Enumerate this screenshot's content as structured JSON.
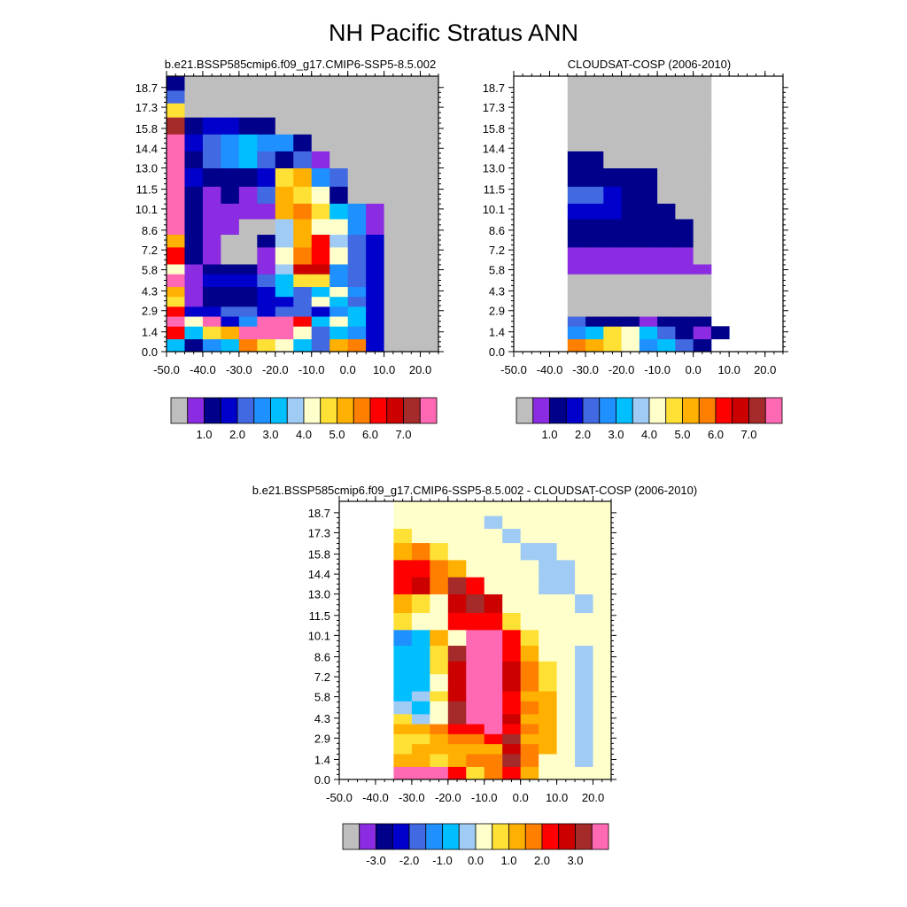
{
  "figure": {
    "title": "NH Pacific Stratus ANN"
  },
  "colors": {
    "missing": "#BEBEBE",
    "palette": [
      "#BEBEBE",
      "#8B2BE2",
      "#00008B",
      "#0000CD",
      "#4169E1",
      "#1E90FF",
      "#00BFFF",
      "#A0CBF5",
      "#FFFFCC",
      "#FFE135",
      "#FFB000",
      "#FF7F00",
      "#FF0000",
      "#CD0000",
      "#A52A2A",
      "#FF69B4"
    ]
  },
  "chart_data": [
    {
      "type": "heatmap",
      "title": "b.e21.BSSP585cmip6.f09_g17.CMIP6-SSP5-8.5.002",
      "x_ticks": [
        "-50.0",
        "-40.0",
        "-30.0",
        "-20.0",
        "-10.0",
        "0.0",
        "10.0",
        "20.0"
      ],
      "y_ticks": [
        "0.0",
        "1.4",
        "2.9",
        "4.3",
        "5.8",
        "7.2",
        "8.6",
        "10.1",
        "11.5",
        "13.0",
        "14.4",
        "15.8",
        "17.3",
        "18.7"
      ],
      "xlim": [
        -50,
        25
      ],
      "ylim": [
        0,
        19.5
      ],
      "colorbar_labels": [
        "1.0",
        "2.0",
        "3.0",
        "4.0",
        "5.0",
        "6.0",
        "7.0"
      ],
      "tau_edges": [
        -50,
        -45,
        -40,
        -35,
        -30,
        -25,
        -20,
        -15,
        -10,
        -5,
        0,
        5,
        10,
        15,
        20,
        25
      ],
      "height_edges": [
        0,
        0.9,
        1.8,
        2.5,
        3.2,
        3.9,
        4.6,
        5.5,
        6.2,
        7.4,
        8.3,
        9.4,
        10.5,
        11.7,
        13.0,
        14.2,
        15.4,
        16.6,
        17.6,
        18.5,
        19.5
      ],
      "values": [
        [
          6,
          2,
          5,
          6,
          11,
          9,
          8,
          6,
          4,
          10,
          11,
          3,
          0,
          0,
          0
        ],
        [
          12,
          6,
          9,
          10,
          15,
          15,
          15,
          8,
          4,
          6,
          5,
          3,
          0,
          0,
          0
        ],
        [
          15,
          8,
          15,
          3,
          5,
          15,
          15,
          12,
          6,
          8,
          6,
          3,
          0,
          0,
          0
        ],
        [
          12,
          3,
          3,
          4,
          4,
          3,
          4,
          4,
          3,
          5,
          6,
          3,
          0,
          0,
          0
        ],
        [
          9,
          1,
          2,
          2,
          2,
          3,
          3,
          4,
          8,
          6,
          4,
          3,
          0,
          0,
          0
        ],
        [
          10,
          1,
          2,
          2,
          2,
          3,
          6,
          4,
          6,
          8,
          5,
          3,
          0,
          0,
          0
        ],
        [
          15,
          1,
          3,
          3,
          3,
          4,
          6,
          9,
          9,
          5,
          4,
          3,
          0,
          0,
          0
        ],
        [
          8,
          1,
          2,
          2,
          2,
          1,
          7,
          13,
          13,
          5,
          4,
          3,
          0,
          0,
          0
        ],
        [
          12,
          2,
          1,
          0,
          0,
          1,
          8,
          11,
          12,
          8,
          4,
          3,
          0,
          0,
          0
        ],
        [
          10,
          2,
          1,
          0,
          0,
          2,
          7,
          10,
          12,
          7,
          4,
          3,
          0,
          0,
          0
        ],
        [
          15,
          2,
          1,
          1,
          0,
          0,
          7,
          10,
          8,
          8,
          5,
          1,
          0,
          0,
          0
        ],
        [
          15,
          2,
          1,
          1,
          1,
          1,
          10,
          11,
          9,
          6,
          5,
          1,
          0,
          0,
          0
        ],
        [
          15,
          2,
          1,
          2,
          1,
          4,
          10,
          9,
          8,
          2,
          0,
          0,
          0,
          0,
          0
        ],
        [
          15,
          3,
          2,
          2,
          2,
          3,
          9,
          10,
          5,
          4,
          0,
          0,
          0,
          0,
          0
        ],
        [
          15,
          2,
          4,
          5,
          6,
          4,
          2,
          4,
          1,
          0,
          0,
          0,
          0,
          0,
          0
        ],
        [
          15,
          3,
          4,
          5,
          6,
          5,
          5,
          2,
          0,
          0,
          0,
          0,
          0,
          0,
          0
        ],
        [
          14,
          2,
          3,
          3,
          2,
          2,
          0,
          0,
          0,
          0,
          0,
          0,
          0,
          0,
          0
        ],
        [
          9,
          0,
          0,
          0,
          0,
          0,
          0,
          0,
          0,
          0,
          0,
          0,
          0,
          0,
          0
        ],
        [
          4,
          0,
          0,
          0,
          0,
          0,
          0,
          0,
          0,
          0,
          0,
          0,
          0,
          0,
          0
        ],
        [
          2,
          0,
          0,
          0,
          0,
          0,
          0,
          0,
          0,
          0,
          0,
          0,
          0,
          0,
          0
        ]
      ]
    },
    {
      "type": "heatmap",
      "title": "CLOUDSAT-COSP (2006-2010)",
      "x_ticks": [
        "-50.0",
        "-40.0",
        "-30.0",
        "-20.0",
        "-10.0",
        "0.0",
        "10.0",
        "20.0"
      ],
      "y_ticks": [
        "0.0",
        "1.4",
        "2.9",
        "4.3",
        "5.8",
        "7.2",
        "8.6",
        "10.1",
        "11.5",
        "13.0",
        "14.4",
        "15.8",
        "17.3",
        "18.7"
      ],
      "xlim": [
        -50,
        25
      ],
      "ylim": [
        0,
        19.5
      ],
      "colorbar_labels": [
        "1.0",
        "2.0",
        "3.0",
        "4.0",
        "5.0",
        "6.0",
        "7.0"
      ],
      "tau_edges": [
        -50,
        -45,
        -40,
        -35,
        -30,
        -25,
        -20,
        -15,
        -10,
        -5,
        0,
        5,
        10,
        15,
        20,
        25
      ],
      "height_edges": [
        0,
        0.9,
        1.8,
        2.5,
        3.2,
        3.9,
        4.6,
        5.5,
        6.2,
        7.4,
        8.3,
        9.4,
        10.5,
        11.7,
        13.0,
        14.2,
        15.4,
        16.6,
        17.6,
        18.5,
        19.5
      ],
      "values": [
        [
          null,
          null,
          null,
          11,
          10,
          9,
          8,
          5,
          6,
          4,
          2,
          null,
          null,
          null,
          null
        ],
        [
          null,
          null,
          null,
          5,
          6,
          9,
          8,
          6,
          4,
          2,
          1,
          2,
          null,
          null,
          null
        ],
        [
          null,
          null,
          null,
          4,
          2,
          2,
          2,
          1,
          2,
          2,
          2,
          null,
          null,
          null,
          null
        ],
        [
          null,
          null,
          null,
          0,
          0,
          0,
          0,
          0,
          0,
          0,
          0,
          null,
          null,
          null,
          null
        ],
        [
          null,
          null,
          null,
          0,
          0,
          0,
          0,
          0,
          0,
          0,
          0,
          null,
          null,
          null,
          null
        ],
        [
          null,
          null,
          null,
          0,
          0,
          0,
          0,
          0,
          0,
          0,
          0,
          null,
          null,
          null,
          null
        ],
        [
          null,
          null,
          null,
          0,
          0,
          0,
          0,
          0,
          0,
          0,
          0,
          null,
          null,
          null,
          null
        ],
        [
          null,
          null,
          null,
          1,
          1,
          1,
          1,
          1,
          1,
          1,
          1,
          null,
          null,
          null,
          null
        ],
        [
          null,
          null,
          null,
          1,
          1,
          1,
          1,
          1,
          1,
          1,
          0,
          null,
          null,
          null,
          null
        ],
        [
          null,
          null,
          null,
          2,
          2,
          2,
          2,
          2,
          2,
          2,
          0,
          null,
          null,
          null,
          null
        ],
        [
          null,
          null,
          null,
          2,
          2,
          2,
          2,
          2,
          2,
          2,
          0,
          null,
          null,
          null,
          null
        ],
        [
          null,
          null,
          null,
          3,
          3,
          3,
          2,
          2,
          2,
          0,
          0,
          null,
          null,
          null,
          null
        ],
        [
          null,
          null,
          null,
          4,
          4,
          3,
          2,
          2,
          0,
          0,
          0,
          null,
          null,
          null,
          null
        ],
        [
          null,
          null,
          null,
          2,
          2,
          2,
          2,
          2,
          0,
          0,
          0,
          null,
          null,
          null,
          null
        ],
        [
          null,
          null,
          null,
          2,
          2,
          0,
          0,
          0,
          0,
          0,
          0,
          null,
          null,
          null,
          null
        ],
        [
          null,
          null,
          null,
          0,
          0,
          0,
          0,
          0,
          0,
          0,
          0,
          null,
          null,
          null,
          null
        ],
        [
          null,
          null,
          null,
          0,
          0,
          0,
          0,
          0,
          0,
          0,
          0,
          null,
          null,
          null,
          null
        ],
        [
          null,
          null,
          null,
          0,
          0,
          0,
          0,
          0,
          0,
          0,
          0,
          null,
          null,
          null,
          null
        ],
        [
          null,
          null,
          null,
          0,
          0,
          0,
          0,
          0,
          0,
          0,
          0,
          null,
          null,
          null,
          null
        ],
        [
          null,
          null,
          null,
          0,
          0,
          0,
          0,
          0,
          0,
          0,
          0,
          null,
          null,
          null,
          null
        ]
      ]
    },
    {
      "type": "heatmap",
      "title": "b.e21.BSSP585cmip6.f09_g17.CMIP6-SSP5-8.5.002 - CLOUDSAT-COSP (2006-2010)",
      "x_ticks": [
        "-50.0",
        "-40.0",
        "-30.0",
        "-20.0",
        "-10.0",
        "0.0",
        "10.0",
        "20.0"
      ],
      "y_ticks": [
        "0.0",
        "1.4",
        "2.9",
        "4.3",
        "5.8",
        "7.2",
        "8.6",
        "10.1",
        "11.5",
        "13.0",
        "14.4",
        "15.8",
        "17.3",
        "18.7"
      ],
      "xlim": [
        -50,
        25
      ],
      "ylim": [
        0,
        19.5
      ],
      "colorbar_labels": [
        "-3.0",
        "-2.0",
        "-1.0",
        "0.0",
        "1.0",
        "2.0",
        "3.0"
      ],
      "tau_edges": [
        -50,
        -45,
        -40,
        -35,
        -30,
        -25,
        -20,
        -15,
        -10,
        -5,
        0,
        5,
        10,
        15,
        20,
        25
      ],
      "height_edges": [
        0,
        0.9,
        1.8,
        2.5,
        3.2,
        3.9,
        4.6,
        5.5,
        6.2,
        7.4,
        8.3,
        9.4,
        10.5,
        11.7,
        13.0,
        14.2,
        15.4,
        16.6,
        17.6,
        18.5,
        19.5
      ],
      "values": [
        [
          null,
          null,
          null,
          15,
          15,
          15,
          12,
          9,
          11,
          12,
          10,
          8,
          8,
          8,
          8
        ],
        [
          null,
          null,
          null,
          10,
          10,
          9,
          10,
          11,
          11,
          14,
          11,
          8,
          8,
          7,
          8
        ],
        [
          null,
          null,
          null,
          9,
          10,
          10,
          10,
          10,
          10,
          13,
          11,
          10,
          8,
          7,
          8
        ],
        [
          null,
          null,
          null,
          9,
          9,
          10,
          11,
          11,
          12,
          14,
          10,
          10,
          8,
          7,
          8
        ],
        [
          null,
          null,
          null,
          10,
          10,
          11,
          12,
          12,
          15,
          12,
          11,
          10,
          8,
          7,
          8
        ],
        [
          null,
          null,
          null,
          9,
          7,
          8,
          14,
          15,
          15,
          13,
          10,
          10,
          8,
          7,
          8
        ],
        [
          null,
          null,
          null,
          7,
          6,
          8,
          14,
          15,
          15,
          12,
          11,
          10,
          8,
          7,
          8
        ],
        [
          null,
          null,
          null,
          6,
          7,
          9,
          13,
          15,
          15,
          12,
          10,
          10,
          8,
          7,
          8
        ],
        [
          null,
          null,
          null,
          6,
          6,
          8,
          13,
          15,
          15,
          13,
          11,
          9,
          8,
          7,
          8
        ],
        [
          null,
          null,
          null,
          6,
          6,
          9,
          13,
          15,
          15,
          13,
          11,
          9,
          8,
          7,
          8
        ],
        [
          null,
          null,
          null,
          6,
          6,
          9,
          14,
          15,
          15,
          12,
          10,
          8,
          8,
          7,
          8
        ],
        [
          null,
          null,
          null,
          5,
          6,
          10,
          8,
          15,
          15,
          12,
          9,
          8,
          8,
          8,
          8
        ],
        [
          null,
          null,
          null,
          9,
          8,
          8,
          12,
          12,
          12,
          9,
          8,
          8,
          8,
          8,
          8
        ],
        [
          null,
          null,
          null,
          10,
          9,
          8,
          13,
          14,
          13,
          8,
          8,
          8,
          8,
          7,
          8
        ],
        [
          null,
          null,
          null,
          12,
          13,
          11,
          14,
          12,
          8,
          8,
          8,
          7,
          7,
          8,
          8
        ],
        [
          null,
          null,
          null,
          12,
          12,
          11,
          10,
          8,
          8,
          8,
          8,
          7,
          7,
          8,
          8
        ],
        [
          null,
          null,
          null,
          10,
          11,
          9,
          8,
          8,
          8,
          8,
          7,
          7,
          8,
          8,
          8
        ],
        [
          null,
          null,
          null,
          9,
          8,
          8,
          8,
          8,
          8,
          7,
          8,
          8,
          8,
          8,
          8
        ],
        [
          null,
          null,
          null,
          8,
          8,
          8,
          8,
          8,
          7,
          8,
          8,
          8,
          8,
          8,
          8
        ],
        [
          null,
          null,
          null,
          8,
          8,
          8,
          8,
          8,
          8,
          8,
          8,
          8,
          8,
          8,
          8
        ]
      ]
    }
  ]
}
